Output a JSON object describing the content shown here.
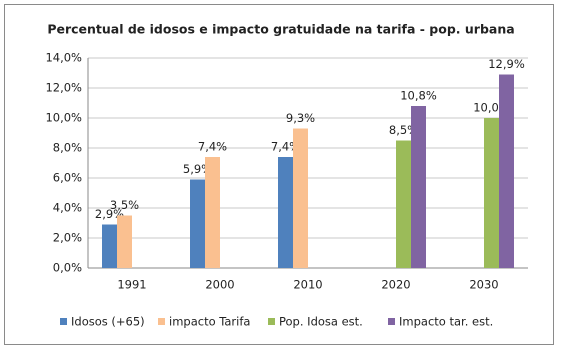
{
  "chart_data": {
    "type": "bar",
    "title": "Percentual de idosos e impacto gratuidade na tarifa - pop. urbana",
    "categories": [
      "1991",
      "2000",
      "2010",
      "2020",
      "2030"
    ],
    "series": [
      {
        "name": "Idosos (+65)",
        "color": "#4f81bd",
        "values": [
          2.9,
          5.9,
          7.4,
          null,
          null
        ],
        "value_labels": [
          "2,9%",
          "5,9%",
          "7,4%",
          null,
          null
        ]
      },
      {
        "name": "impacto Tarifa",
        "color": "#fac090",
        "values": [
          3.5,
          7.4,
          9.3,
          null,
          null
        ],
        "value_labels": [
          "3,5%",
          "7,4%",
          "9,3%",
          null,
          null
        ]
      },
      {
        "name": "Pop. Idosa est.",
        "color": "#9bbb59",
        "values": [
          null,
          null,
          null,
          8.5,
          10.0
        ],
        "value_labels": [
          null,
          null,
          null,
          "8,5%",
          "10,0%"
        ]
      },
      {
        "name": "Impacto tar. est.",
        "color": "#8064a2",
        "values": [
          null,
          null,
          null,
          10.8,
          12.9
        ],
        "value_labels": [
          null,
          null,
          null,
          "10,8%",
          "12,9%"
        ]
      }
    ],
    "ylim": [
      0,
      14
    ],
    "yticks": [
      {
        "value": 0,
        "label": "0,0%"
      },
      {
        "value": 2,
        "label": "2,0%"
      },
      {
        "value": 4,
        "label": "4,0%"
      },
      {
        "value": 6,
        "label": "6,0%"
      },
      {
        "value": 8,
        "label": "8,0%"
      },
      {
        "value": 10,
        "label": "10,0%"
      },
      {
        "value": 12,
        "label": "12,0%"
      },
      {
        "value": 14,
        "label": "14,0%"
      }
    ],
    "grid": true,
    "legend": "bottom"
  }
}
